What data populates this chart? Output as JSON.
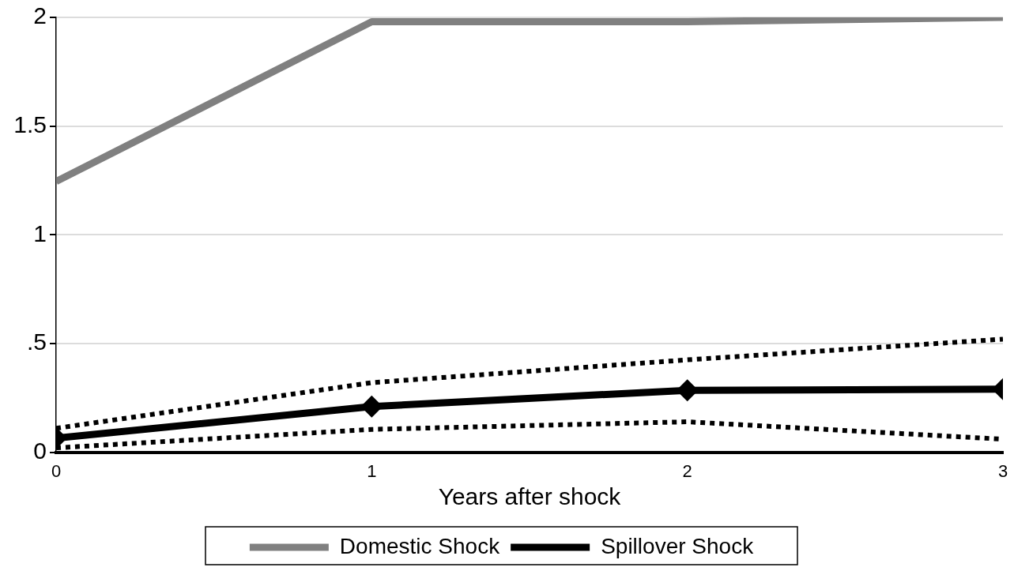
{
  "chart_data": {
    "type": "line",
    "xlabel": "Years after shock",
    "x": [
      0,
      1,
      2,
      3
    ],
    "xlim": [
      0,
      3
    ],
    "xticks": [
      0,
      1,
      2,
      3
    ],
    "ylim": [
      0,
      2
    ],
    "yticks": [
      0,
      {
        "value": 0.5,
        "label": ".5"
      },
      1,
      1.5,
      2
    ],
    "grid": "y",
    "legend": "bottom",
    "series": [
      {
        "name": "Domestic Shock",
        "color": "#808080",
        "values": [
          1.245,
          1.98,
          1.98,
          2.0
        ],
        "marker": "none",
        "line_style": "solid"
      },
      {
        "name": "Spillover Shock",
        "color": "#000000",
        "values": [
          0.065,
          0.21,
          0.285,
          0.29
        ],
        "marker": "diamond",
        "line_style": "solid"
      },
      {
        "color": "#000000",
        "values": [
          0.11,
          0.32,
          0.425,
          0.52
        ],
        "marker": "none",
        "line_style": "dotted"
      },
      {
        "color": "#000000",
        "values": [
          0.02,
          0.105,
          0.14,
          0.06
        ],
        "marker": "none",
        "line_style": "dotted"
      }
    ]
  }
}
